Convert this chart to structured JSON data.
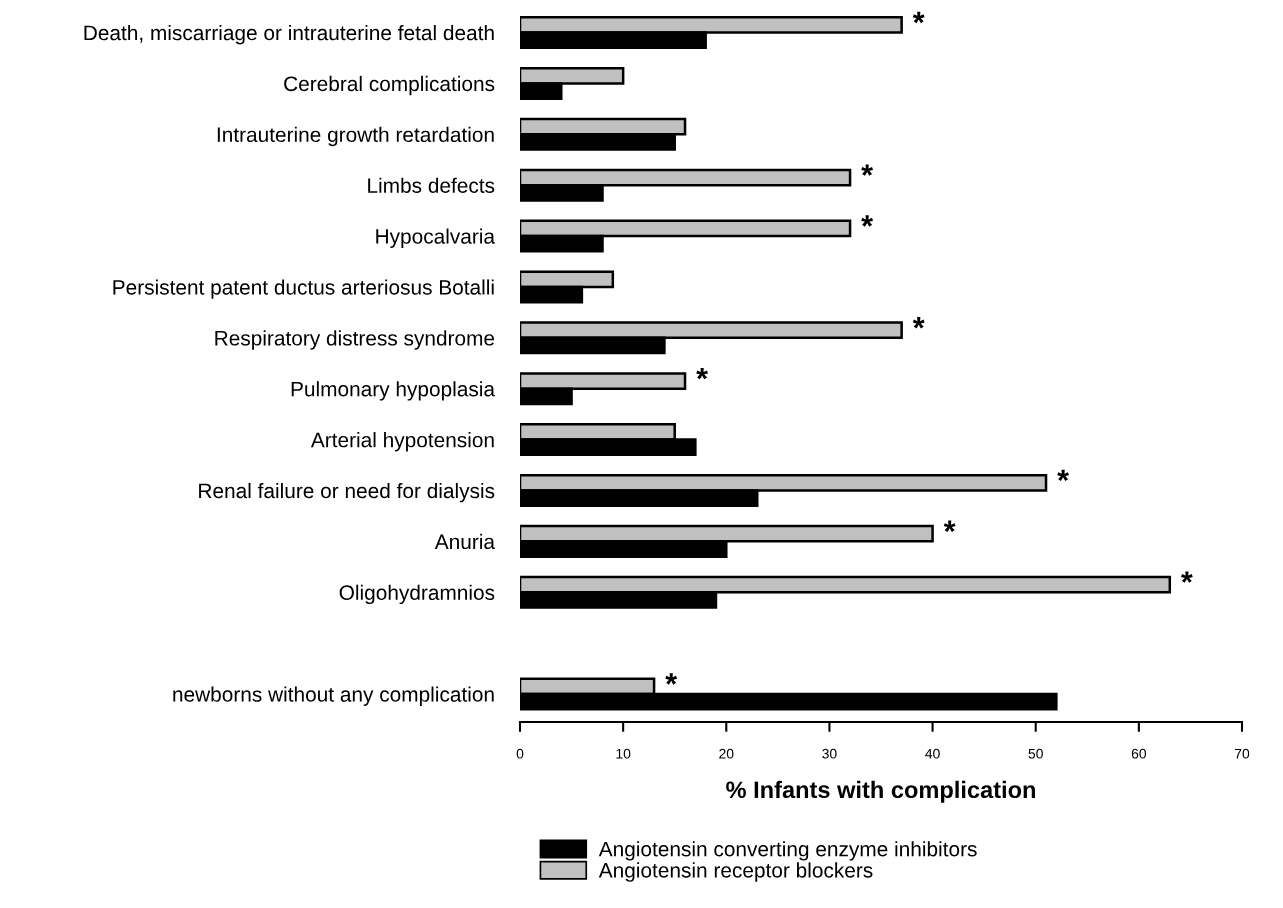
{
  "chart_data": {
    "type": "bar",
    "orientation": "horizontal",
    "categories": [
      "Death, miscarriage or intrauterine fetal death",
      "Cerebral complications",
      "Intrauterine growth retardation",
      "Limbs defects",
      "Hypocalvaria",
      "Persistent patent ductus arteriosus Botalli",
      "Respiratory distress syndrome",
      "Pulmonary hypoplasia",
      "Arterial hypotension",
      "Renal failure or need for dialysis",
      "Anuria",
      "Oligohydramnios",
      null,
      "newborns without any complication"
    ],
    "series": [
      {
        "name": "Angiotensin receptor blockers",
        "color": "#c0c0c0",
        "values": [
          37,
          10,
          16,
          32,
          32,
          9,
          37,
          16,
          15,
          51,
          40,
          63,
          null,
          13
        ]
      },
      {
        "name": "Angiotensin converting enzyme inhibitors",
        "color": "#000000",
        "values": [
          18,
          4,
          15,
          8,
          8,
          6,
          14,
          5,
          17,
          23,
          20,
          19,
          null,
          52
        ]
      }
    ],
    "xlabel": "% Infants with complication",
    "xlim": [
      0,
      70
    ],
    "xticks": [
      0,
      10,
      20,
      30,
      40,
      50,
      60,
      70
    ],
    "grid": false,
    "legend": "bottom",
    "annotations": [
      {
        "text": "*",
        "x": 37,
        "y": "Death, miscarriage or intrauterine fetal death"
      },
      {
        "text": "*",
        "x": 32,
        "y": "Limbs defects"
      },
      {
        "text": "*",
        "x": 32,
        "y": "Hypocalvaria"
      },
      {
        "text": "*",
        "x": 37,
        "y": "Respiratory distress syndrome"
      },
      {
        "text": "*",
        "x": 16,
        "y": "Pulmonary hypoplasia"
      },
      {
        "text": "*",
        "x": 51,
        "y": "Renal failure or need for dialysis"
      },
      {
        "text": "*",
        "x": 40,
        "y": "Anuria"
      },
      {
        "text": "*",
        "x": 63,
        "y": "Oligohydramnios"
      },
      {
        "text": "*",
        "x": 13,
        "y": "newborns without any complication"
      }
    ]
  }
}
